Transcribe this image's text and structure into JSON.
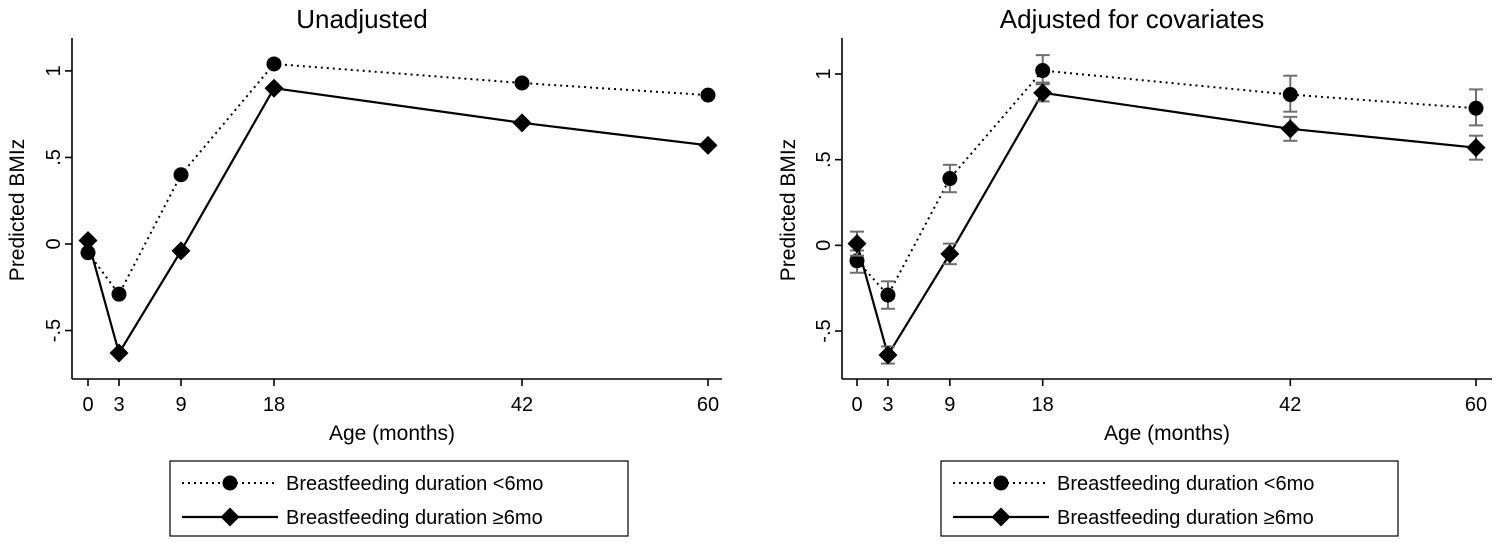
{
  "chart_data": [
    {
      "type": "line",
      "title": "Unadjusted",
      "xlabel": "Age (months)",
      "ylabel": "Predicted BMIz",
      "x": [
        0,
        3,
        9,
        18,
        42,
        60
      ],
      "x_ticks": [
        "0",
        "3",
        "9",
        "18",
        "42",
        "60"
      ],
      "xlim": [
        -1.5,
        61
      ],
      "ylim": [
        -0.78,
        1.19
      ],
      "y_ticks": [
        -0.5,
        0,
        0.5,
        1
      ],
      "y_tick_labels": [
        "-.5",
        "0",
        ".5",
        "1"
      ],
      "error_bars": false,
      "series": [
        {
          "name": "Breastfeeding duration <6mo",
          "line": "dotted",
          "marker": "circle",
          "values": [
            -0.05,
            -0.29,
            0.4,
            1.04,
            0.93,
            0.86
          ]
        },
        {
          "name": "Breastfeeding duration ≥6mo",
          "line": "solid",
          "marker": "diamond",
          "values": [
            0.02,
            -0.63,
            -0.04,
            0.9,
            0.7,
            0.57
          ]
        }
      ],
      "legend_position": "bottom"
    },
    {
      "type": "line",
      "title": "Adjusted for covariates",
      "xlabel": "Age (months)",
      "ylabel": "Predicted BMIz",
      "x": [
        0,
        3,
        9,
        18,
        42,
        60
      ],
      "x_ticks": [
        "0",
        "3",
        "9",
        "18",
        "42",
        "60"
      ],
      "xlim": [
        -1.5,
        61
      ],
      "ylim": [
        -0.78,
        1.21
      ],
      "y_ticks": [
        -0.5,
        0,
        0.5,
        1
      ],
      "y_tick_labels": [
        "-.5",
        "0",
        ".5",
        "1"
      ],
      "error_bars": true,
      "series": [
        {
          "name": "Breastfeeding duration <6mo",
          "line": "dotted",
          "marker": "circle",
          "values": [
            -0.09,
            -0.29,
            0.39,
            1.02,
            0.88,
            0.8
          ],
          "ci_low": [
            -0.16,
            -0.37,
            0.31,
            0.95,
            0.78,
            0.7
          ],
          "ci_high": [
            -0.03,
            -0.21,
            0.47,
            1.11,
            0.99,
            0.91
          ]
        },
        {
          "name": "Breastfeeding duration ≥6mo",
          "line": "solid",
          "marker": "diamond",
          "values": [
            0.01,
            -0.64,
            -0.05,
            0.89,
            0.68,
            0.57
          ],
          "ci_low": [
            -0.06,
            -0.69,
            -0.11,
            0.84,
            0.61,
            0.5
          ],
          "ci_high": [
            0.08,
            -0.59,
            0.01,
            0.94,
            0.75,
            0.64
          ]
        }
      ],
      "legend_position": "bottom"
    }
  ]
}
